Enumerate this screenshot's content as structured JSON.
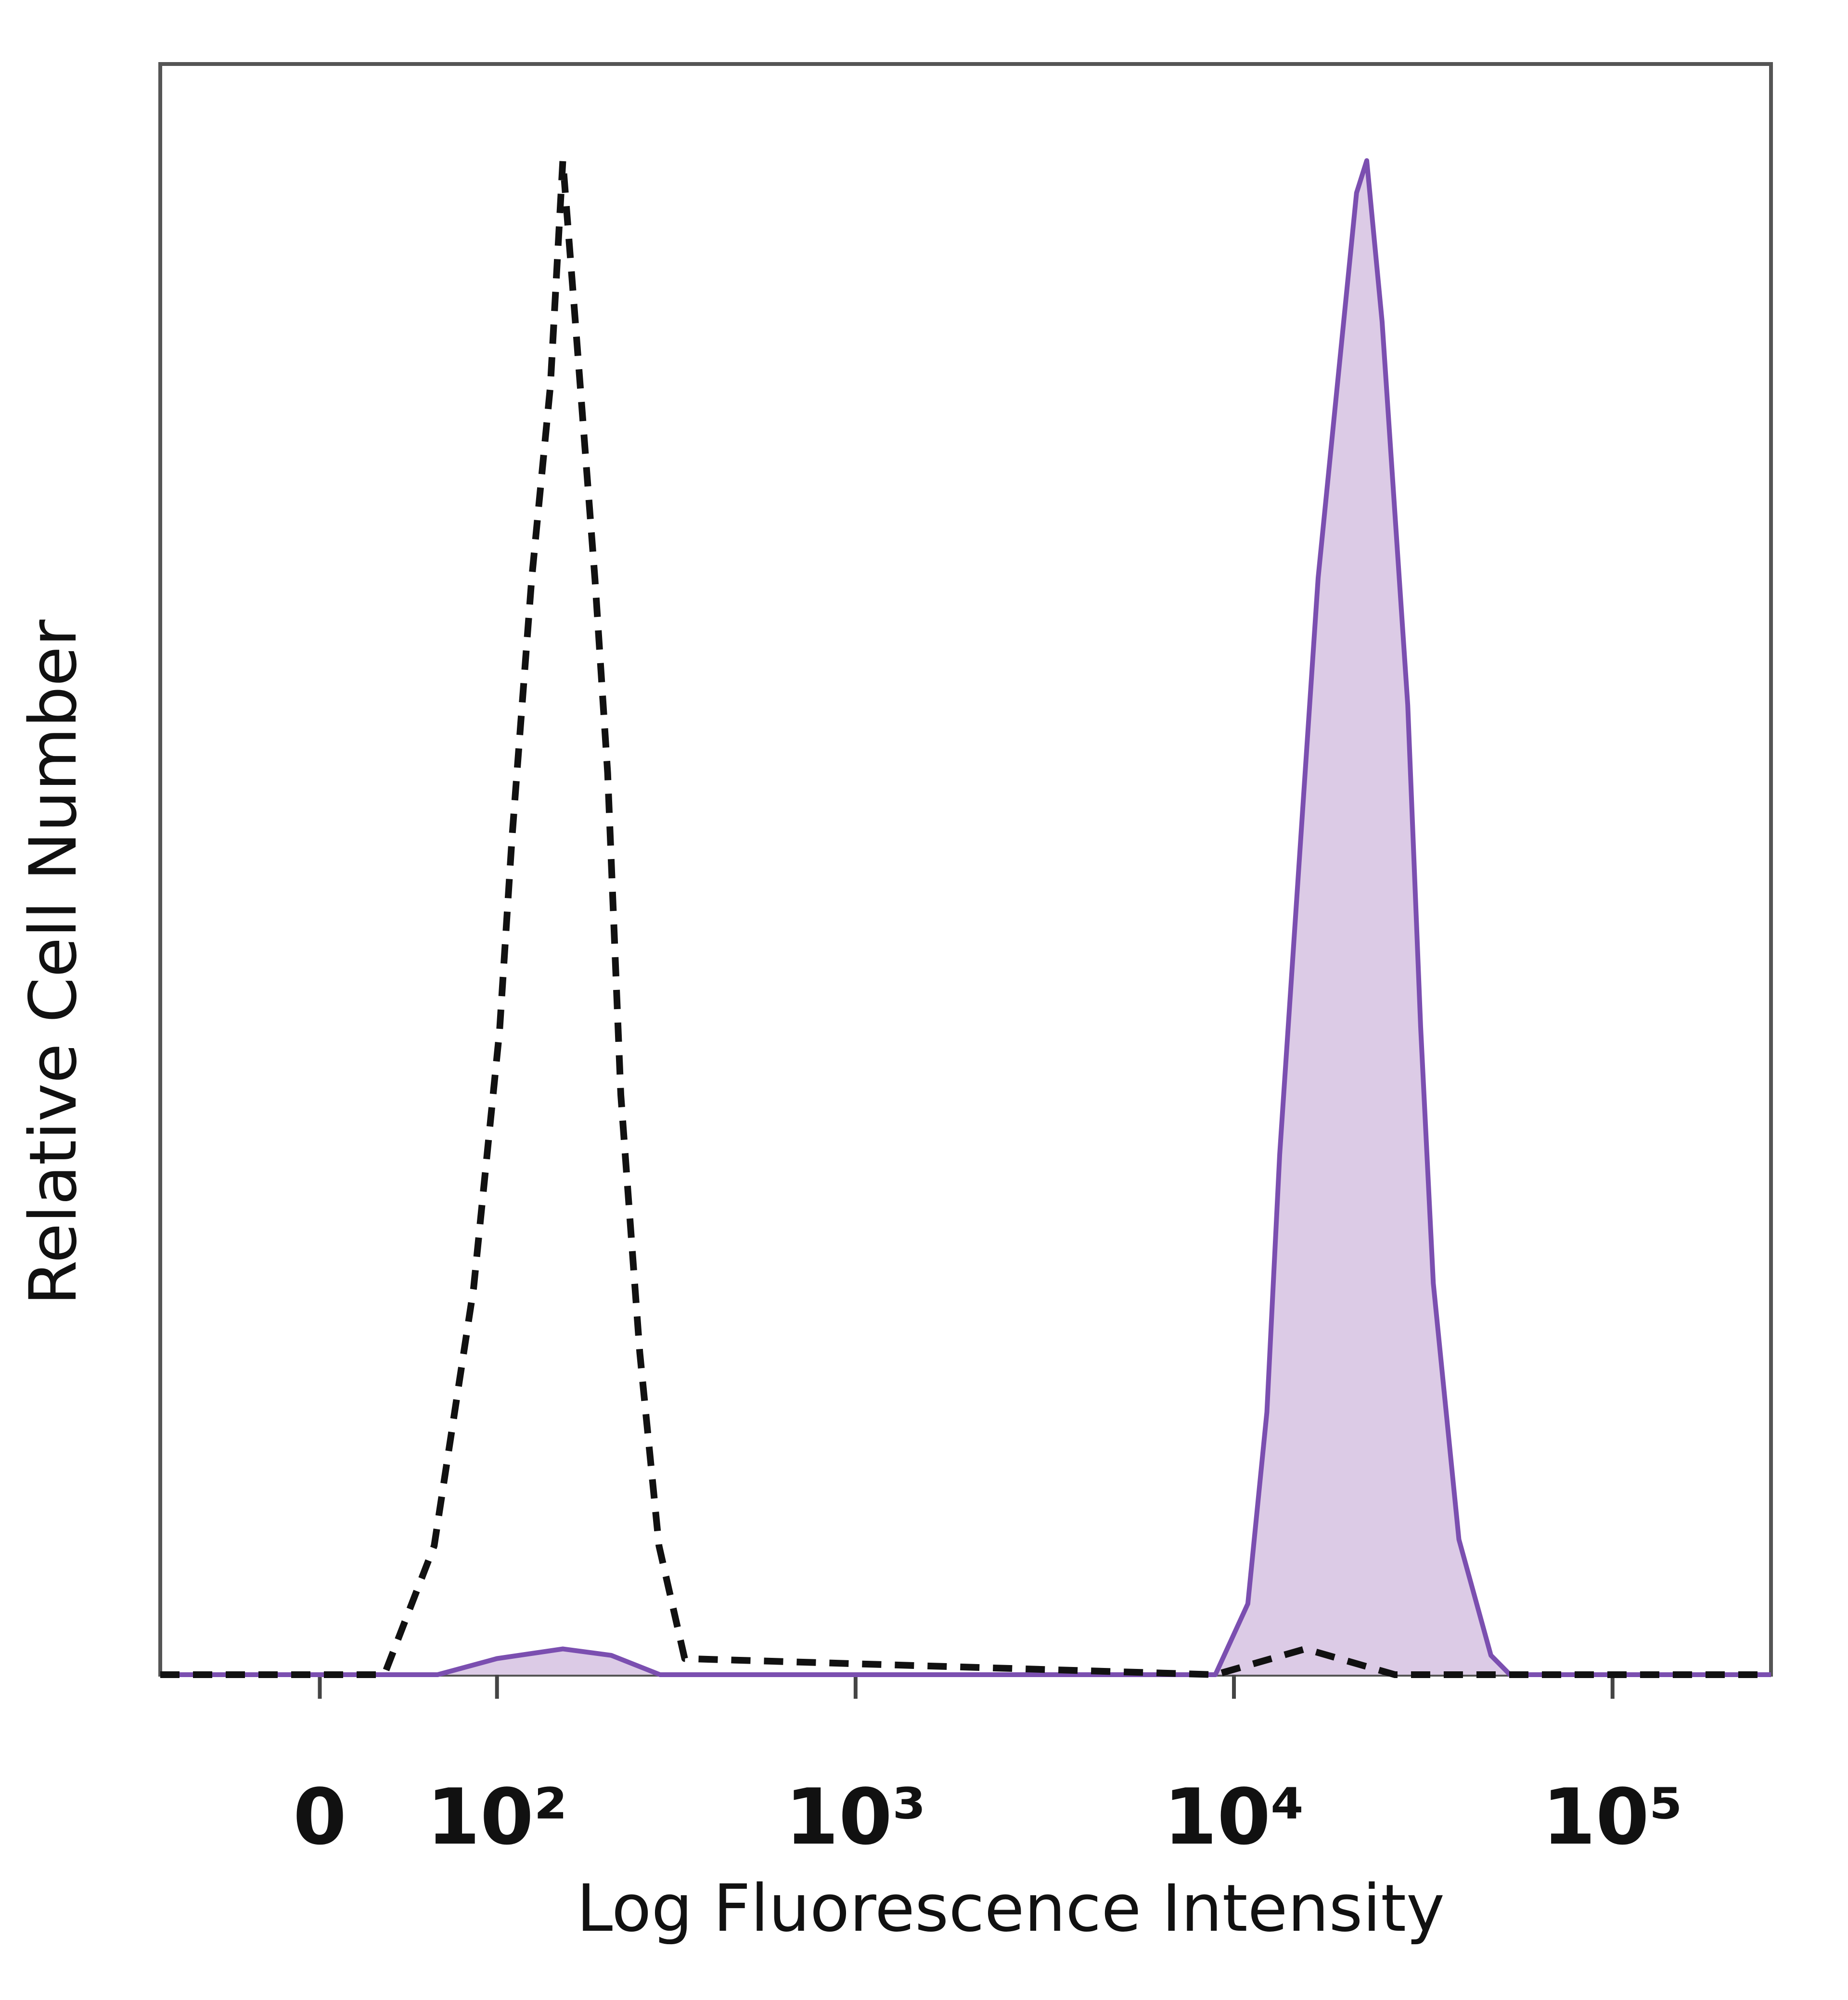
{
  "chart_data": {
    "type": "histogram",
    "xlabel": "Log Fluorescence Intensity",
    "ylabel": "Relative Cell Number",
    "xscale": "biexponential",
    "xlim": [
      -87,
      262144
    ],
    "ylim": [
      0,
      100
    ],
    "xticks": [
      0,
      {
        "value": 100,
        "label": "10²"
      },
      {
        "value": 1000,
        "label": "10³"
      },
      {
        "value": 10000,
        "label": "10⁴"
      },
      {
        "value": 100000,
        "label": "10⁵"
      }
    ],
    "series": [
      {
        "color": "#7b4fb0",
        "fill": "#dccbe6",
        "dashed": false,
        "x": [
          -87,
          60,
          100,
          160,
          220,
          300,
          8930,
          10880,
          12220,
          13210,
          15440,
          16690,
          18760,
          21080,
          22430,
          24620,
          26620,
          28780,
          31130,
          33620,
          39280,
          47730,
          53620,
          262144
        ],
        "values": [
          0,
          0,
          1,
          1.6,
          1.2,
          0,
          0,
          4.4,
          16.3,
          32.3,
          56.2,
          68.1,
          80.1,
          92,
          94,
          84,
          72.1,
          60.2,
          40.2,
          24.3,
          8.4,
          1.2,
          0,
          0
        ]
      },
      {
        "color": "#111111",
        "dashed": true,
        "x": [
          -87,
          31,
          58,
          83,
          102,
          112,
          129,
          147,
          160,
          174,
          198,
          215,
          234,
          264,
          298,
          350,
          8930,
          15440,
          26620,
          262144
        ],
        "values": [
          0,
          0,
          8,
          24,
          40,
          52,
          68,
          80,
          94,
          84,
          68,
          56,
          36,
          20,
          8,
          1,
          0,
          1.6,
          0,
          0
        ]
      }
    ]
  }
}
